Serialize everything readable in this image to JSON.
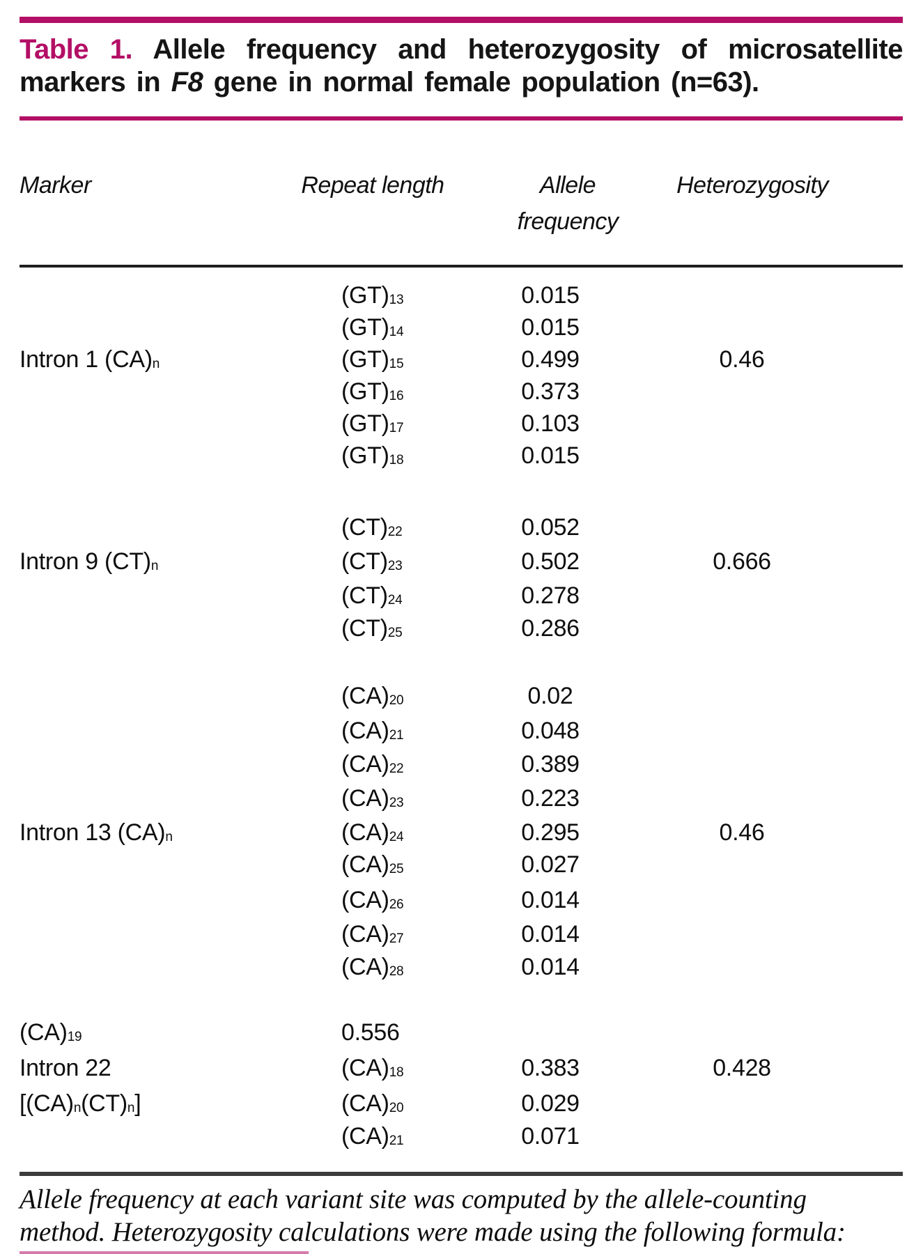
{
  "title": {
    "line1_parts": [
      {
        "m": "Table 1."
      },
      {
        "t": " Allele frequency and heterozygosity of microsatellite"
      }
    ],
    "line2_parts": [
      {
        "t": "markers in "
      },
      {
        "i": "F8"
      },
      {
        "t": " gene in normal female population (n=63)."
      }
    ]
  },
  "columns": {
    "marker": "Marker",
    "repeat": "Repeat length",
    "freq_line1": "Allele",
    "freq_line2": "frequency",
    "het": "Heterozygosity"
  },
  "table": {
    "rows": [
      {
        "marker": [],
        "repeat": [
          {
            "t": "(GT)"
          },
          {
            "s": "13"
          }
        ],
        "freq": "0.015",
        "het": ""
      },
      {
        "marker": [],
        "repeat": [
          {
            "t": "(GT)"
          },
          {
            "s": "14"
          }
        ],
        "freq": "0.015",
        "het": ""
      },
      {
        "marker": [
          {
            "t": "Intron 1 (CA)"
          },
          {
            "s": "n"
          }
        ],
        "repeat": [
          {
            "t": "(GT)"
          },
          {
            "s": "15"
          }
        ],
        "freq": "0.499",
        "het": "0.46"
      },
      {
        "marker": [],
        "repeat": [
          {
            "t": "(GT)"
          },
          {
            "s": "16"
          }
        ],
        "freq": "0.373",
        "het": ""
      },
      {
        "marker": [],
        "repeat": [
          {
            "t": "(GT)"
          },
          {
            "s": "17"
          }
        ],
        "freq": "0.103",
        "het": ""
      },
      {
        "marker": [],
        "repeat": [
          {
            "t": "(GT)"
          },
          {
            "s": "18"
          }
        ],
        "freq": "0.015",
        "het": ""
      },
      {
        "marker": [],
        "repeat": [
          {
            "t": "(CT)"
          },
          {
            "s": "22"
          }
        ],
        "freq": "0.052",
        "het": ""
      },
      {
        "marker": [
          {
            "t": "Intron 9 (CT)"
          },
          {
            "s": "n"
          }
        ],
        "repeat": [
          {
            "t": "(CT)"
          },
          {
            "s": "23"
          }
        ],
        "freq": "0.502",
        "het": "0.666"
      },
      {
        "marker": [],
        "repeat": [
          {
            "t": "(CT)"
          },
          {
            "s": "24"
          }
        ],
        "freq": "0.278",
        "het": ""
      },
      {
        "marker": [],
        "repeat": [
          {
            "t": "(CT)"
          },
          {
            "s": "25"
          }
        ],
        "freq": "0.286",
        "het": ""
      },
      {
        "marker": [],
        "repeat": [
          {
            "t": "(CA)"
          },
          {
            "s": "20"
          }
        ],
        "freq": "0.02",
        "het": ""
      },
      {
        "marker": [],
        "repeat": [
          {
            "t": "(CA)"
          },
          {
            "s": "21"
          }
        ],
        "freq": "0.048",
        "het": ""
      },
      {
        "marker": [],
        "repeat": [
          {
            "t": "(CA)"
          },
          {
            "s": "22"
          }
        ],
        "freq": "0.389",
        "het": ""
      },
      {
        "marker": [],
        "repeat": [
          {
            "t": "(CA)"
          },
          {
            "s": "23"
          }
        ],
        "freq": "0.223",
        "het": ""
      },
      {
        "marker": [
          {
            "t": "Intron 13 (CA)"
          },
          {
            "s": "n"
          }
        ],
        "repeat": [
          {
            "t": "(CA)"
          },
          {
            "s": "24"
          }
        ],
        "freq": "0.295",
        "het": "0.46"
      },
      {
        "marker": [],
        "repeat": [
          {
            "t": "(CA)"
          },
          {
            "s": "25"
          }
        ],
        "freq": "0.027",
        "het": ""
      },
      {
        "marker": [],
        "repeat": [
          {
            "t": "(CA)"
          },
          {
            "s": "26"
          }
        ],
        "freq": "0.014",
        "het": ""
      },
      {
        "marker": [],
        "repeat": [
          {
            "t": "(CA)"
          },
          {
            "s": "27"
          }
        ],
        "freq": "0.014",
        "het": ""
      },
      {
        "marker": [],
        "repeat": [
          {
            "t": "(CA)"
          },
          {
            "s": "28"
          }
        ],
        "freq": "0.014",
        "het": ""
      },
      {
        "marker": [
          {
            "t": "(CA)"
          },
          {
            "s": "19"
          }
        ],
        "repeat": [
          {
            "t": "0.556"
          }
        ],
        "freq": "",
        "het": ""
      },
      {
        "marker": [
          {
            "t": "Intron 22"
          }
        ],
        "repeat": [
          {
            "t": "(CA)"
          },
          {
            "s": "18"
          }
        ],
        "freq": "0.383",
        "het": "0.428"
      },
      {
        "marker": [
          {
            "t": "[(CA)"
          },
          {
            "s": "n"
          },
          {
            "t": "(CT)"
          },
          {
            "s": "n"
          },
          {
            "t": "]"
          }
        ],
        "repeat": [
          {
            "t": "(CA)"
          },
          {
            "s": "20"
          }
        ],
        "freq": "0.029",
        "het": ""
      },
      {
        "marker": [],
        "repeat": [
          {
            "t": "(CA)"
          },
          {
            "s": "21"
          }
        ],
        "freq": "0.071",
        "het": ""
      }
    ]
  },
  "footnote": {
    "line1": "Allele frequency at each variant site was computed by the allele-counting",
    "line2": "method. Heterozygosity calculations were made using the following formula:"
  },
  "colors": {
    "accent": "#b30f66"
  }
}
